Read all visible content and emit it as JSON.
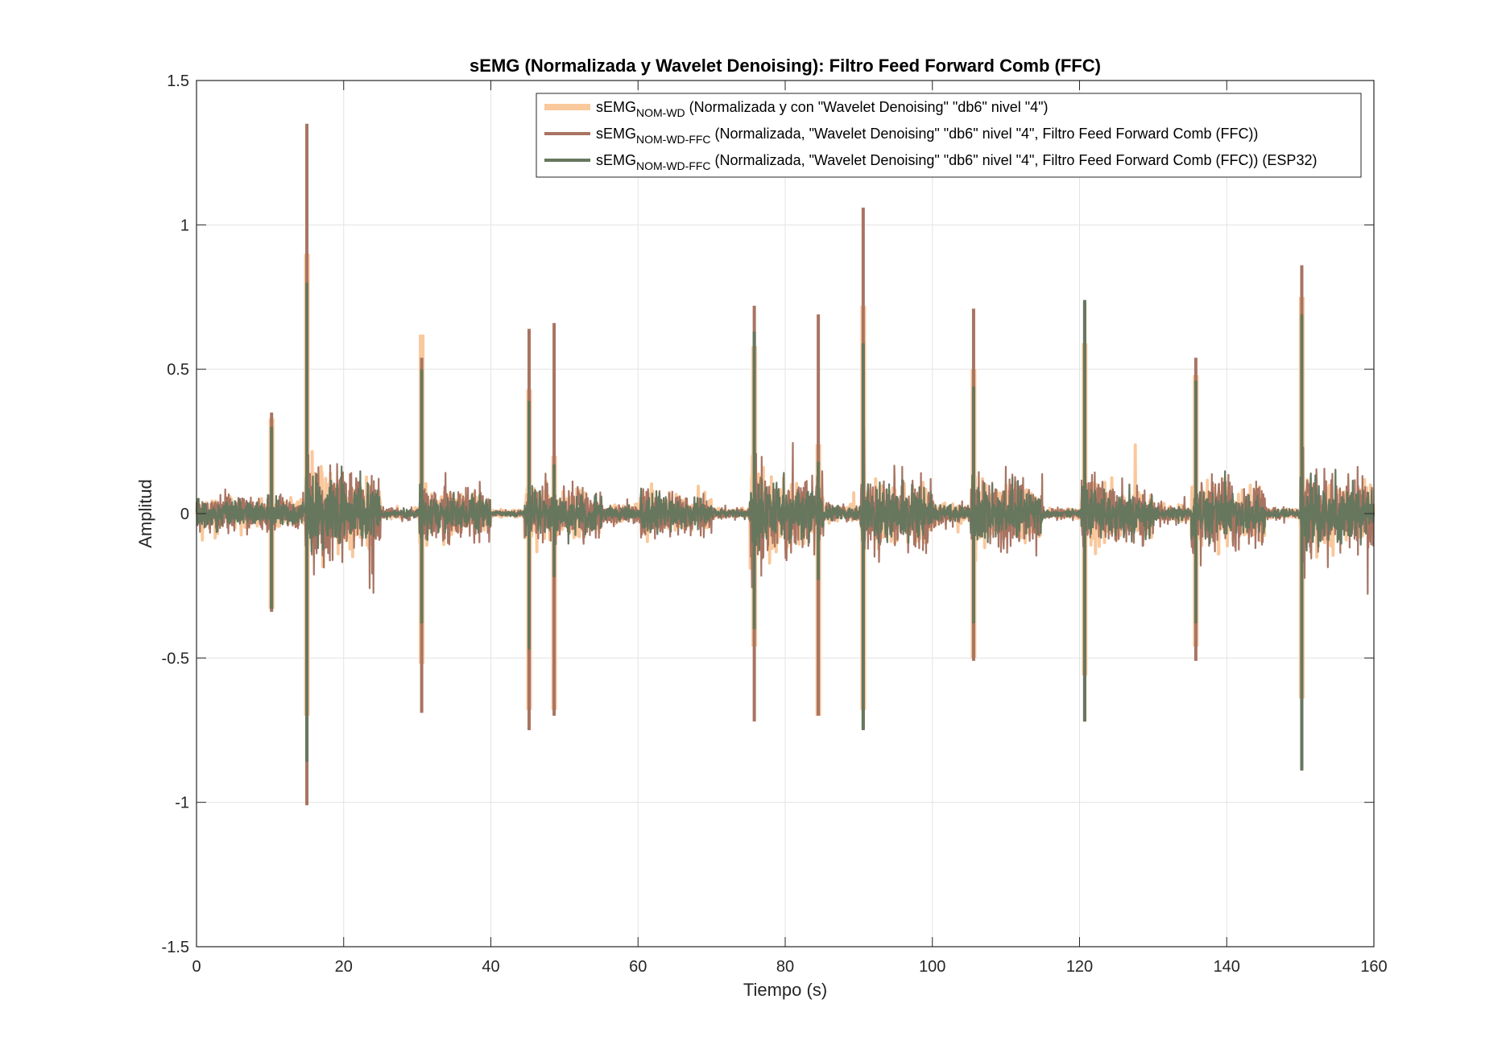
{
  "chart_data": {
    "type": "line",
    "title": "sEMG (Normalizada y Wavelet Denoising): Filtro Feed Forward Comb (FFC)",
    "xlabel": "Tiempo (s)",
    "ylabel": "Amplitud",
    "xlim": [
      0,
      160
    ],
    "ylim": [
      -1.5,
      1.5
    ],
    "x_ticks": [
      0,
      20,
      40,
      60,
      80,
      100,
      120,
      140,
      160
    ],
    "y_ticks": [
      -1.5,
      -1,
      -0.5,
      0,
      0.5,
      1,
      1.5
    ],
    "x_tick_labels": [
      "0",
      "20",
      "40",
      "60",
      "80",
      "100",
      "120",
      "140",
      "160"
    ],
    "y_tick_labels": [
      "-1.5",
      "-1",
      "-0.5",
      "0",
      "0.5",
      "1",
      "1.5"
    ],
    "grid": true,
    "legend_position": "top-right",
    "series": [
      {
        "legend_main": "sEMG",
        "legend_sub": "NOM-WD",
        "legend_desc": " (Normalizada y con \"Wavelet Denoising\" \"db6\" nivel \"4\")",
        "color": "#f9c89b",
        "peaks": [
          [
            10.2,
            0.33,
            -0.33
          ],
          [
            15.0,
            0.9,
            -0.7
          ],
          [
            30.6,
            0.62,
            -0.52
          ],
          [
            45.2,
            0.43,
            -0.68
          ],
          [
            48.6,
            0.2,
            -0.68
          ],
          [
            75.8,
            0.58,
            -0.46
          ],
          [
            84.5,
            0.24,
            -0.7
          ],
          [
            90.6,
            0.72,
            -0.68
          ],
          [
            105.6,
            0.5,
            -0.5
          ],
          [
            120.7,
            0.59,
            -0.56
          ],
          [
            135.8,
            0.48,
            -0.46
          ],
          [
            150.2,
            0.75,
            -0.64
          ]
        ]
      },
      {
        "legend_main": "sEMG",
        "legend_sub": "NOM-WD-FFC",
        "legend_desc": " (Normalizada, \"Wavelet Denoising\" \"db6\" nivel \"4\", Filtro Feed Forward Comb (FFC))",
        "color": "#a87462",
        "peaks": [
          [
            10.2,
            0.35,
            -0.34
          ],
          [
            15.0,
            1.35,
            -1.01
          ],
          [
            30.6,
            0.54,
            -0.69
          ],
          [
            45.2,
            0.64,
            -0.75
          ],
          [
            48.6,
            0.66,
            -0.7
          ],
          [
            75.8,
            0.72,
            -0.72
          ],
          [
            84.5,
            0.69,
            -0.7
          ],
          [
            90.6,
            1.06,
            -0.74
          ],
          [
            105.6,
            0.71,
            -0.51
          ],
          [
            120.7,
            0.73,
            -0.72
          ],
          [
            135.8,
            0.54,
            -0.51
          ],
          [
            150.2,
            0.86,
            -0.88
          ]
        ]
      },
      {
        "legend_main": "sEMG",
        "legend_sub": "NOM-WD-FFC",
        "legend_desc": " (Normalizada, \"Wavelet Denoising\" \"db6\" nivel \"4\", Filtro Feed Forward Comb (FFC)) (ESP32)",
        "color": "#66775e",
        "peaks": [
          [
            10.2,
            0.3,
            -0.33
          ],
          [
            15.0,
            0.8,
            -0.86
          ],
          [
            30.6,
            0.5,
            -0.38
          ],
          [
            45.2,
            0.39,
            -0.47
          ],
          [
            48.6,
            0.17,
            -0.22
          ],
          [
            75.8,
            0.63,
            -0.4
          ],
          [
            84.5,
            0.18,
            -0.23
          ],
          [
            90.6,
            0.59,
            -0.75
          ],
          [
            105.6,
            0.44,
            -0.38
          ],
          [
            120.7,
            0.74,
            -0.72
          ],
          [
            135.8,
            0.46,
            -0.38
          ],
          [
            150.2,
            0.69,
            -0.89
          ]
        ]
      }
    ],
    "bursts": [
      [
        0,
        2.5,
        0.1
      ],
      [
        2.5,
        10.0,
        0.11
      ],
      [
        10.0,
        14.8,
        0.1
      ],
      [
        14.8,
        25.0,
        0.28
      ],
      [
        25.0,
        30.3,
        0.03
      ],
      [
        30.3,
        40.0,
        0.17
      ],
      [
        40.0,
        44.6,
        0.02
      ],
      [
        44.6,
        55.2,
        0.17
      ],
      [
        55.2,
        60.3,
        0.05
      ],
      [
        60.3,
        70.0,
        0.14
      ],
      [
        70.0,
        75.2,
        0.03
      ],
      [
        75.2,
        85.2,
        0.25
      ],
      [
        85.2,
        90.2,
        0.05
      ],
      [
        90.2,
        100.0,
        0.22
      ],
      [
        100.0,
        105.2,
        0.06
      ],
      [
        105.2,
        115.0,
        0.22
      ],
      [
        115.0,
        120.2,
        0.03
      ],
      [
        120.2,
        130.0,
        0.2
      ],
      [
        130.0,
        135.2,
        0.05
      ],
      [
        135.2,
        145.2,
        0.22
      ],
      [
        145.2,
        150.0,
        0.03
      ],
      [
        150.0,
        160.0,
        0.24
      ]
    ]
  }
}
